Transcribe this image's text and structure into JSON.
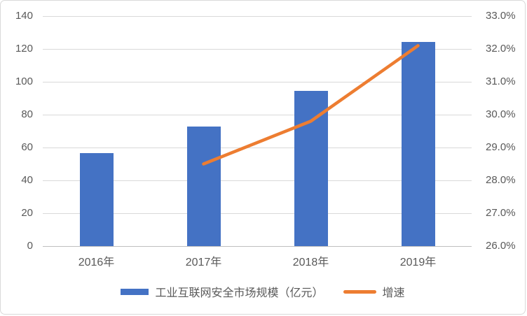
{
  "chart_data": {
    "type": "combo-bar-line",
    "title": "",
    "categories": [
      "2016年",
      "2017年",
      "2018年",
      "2019年"
    ],
    "series": [
      {
        "name": "工业互联网安全市场规模（亿元）",
        "type": "bar",
        "axis": "left",
        "color": "#4472C4",
        "values": [
          56.7,
          72.9,
          94.6,
          124.3
        ]
      },
      {
        "name": "增速",
        "type": "line",
        "axis": "right",
        "color": "#ED7D31",
        "unit": "%",
        "values": [
          null,
          28.5,
          29.8,
          32.1
        ]
      }
    ],
    "left_axis": {
      "min": 0,
      "max": 140,
      "step": 20,
      "ticks": [
        "0",
        "20",
        "40",
        "60",
        "80",
        "100",
        "120",
        "140"
      ]
    },
    "right_axis": {
      "min": 26,
      "max": 33,
      "step": 1,
      "ticks": [
        "26.0%",
        "27.0%",
        "28.0%",
        "29.0%",
        "30.0%",
        "31.0%",
        "32.0%",
        "33.0%"
      ]
    },
    "grid": true,
    "legend_position": "bottom",
    "colors": {
      "gridline": "#d9d9d9",
      "axis_line": "#bfbfbf",
      "text": "#595959",
      "background": "#ffffff",
      "border": "#d9d9d9"
    }
  }
}
